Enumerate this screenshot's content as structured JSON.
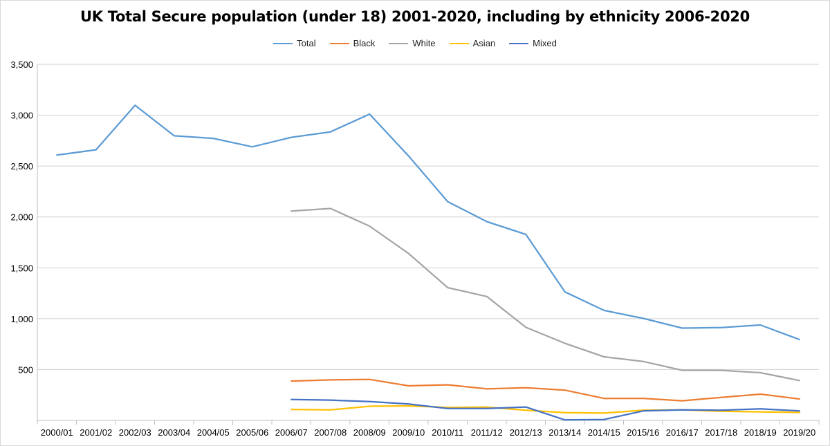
{
  "chart_data": {
    "type": "line",
    "title": "UK Total Secure population (under 18) 2001-2020, including by ethnicity 2006-2020",
    "xlabel": "",
    "ylabel": "",
    "ylim": [
      0,
      3500
    ],
    "yticks": [
      500,
      1000,
      1500,
      2000,
      2500,
      3000,
      3500
    ],
    "ytick_labels": [
      "500",
      "1,000",
      "1,500",
      "2,000",
      "2,500",
      "3,000",
      "3,500"
    ],
    "grid": true,
    "legend_position": "top",
    "categories": [
      "2000/01",
      "2001/02",
      "2002/03",
      "2003/04",
      "2004/05",
      "2005/06",
      "2006/07",
      "2007/08",
      "2008/09",
      "2009/10",
      "2010/11",
      "2011/12",
      "2012/13",
      "2013/14",
      "2014/15",
      "2015/16",
      "2016/17",
      "2017/18",
      "2018/19",
      "2019/20"
    ],
    "series": [
      {
        "name": "Total",
        "color": "#5b9bd5",
        "values": [
          2608,
          2660,
          3097,
          2797,
          2772,
          2689,
          2782,
          2836,
          3011,
          2598,
          2150,
          1954,
          1828,
          1263,
          1081,
          1003,
          907,
          912,
          938,
          795
        ]
      },
      {
        "name": "Black",
        "color": "#ed7d31",
        "values": [
          null,
          null,
          null,
          null,
          null,
          null,
          387,
          398,
          403,
          340,
          350,
          310,
          321,
          298,
          216,
          217,
          193,
          226,
          258,
          211
        ]
      },
      {
        "name": "White",
        "color": "#a5a5a5",
        "values": [
          null,
          null,
          null,
          null,
          null,
          null,
          2057,
          2083,
          1910,
          1640,
          1305,
          1218,
          915,
          758,
          625,
          580,
          493,
          492,
          469,
          392
        ]
      },
      {
        "name": "Asian",
        "color": "#ffc000",
        "values": [
          null,
          null,
          null,
          null,
          null,
          null,
          108,
          103,
          139,
          143,
          128,
          131,
          100,
          76,
          72,
          100,
          103,
          90,
          84,
          78
        ]
      },
      {
        "name": "Mixed",
        "color": "#4472c4",
        "values": [
          null,
          null,
          null,
          null,
          null,
          null,
          205,
          200,
          185,
          162,
          117,
          117,
          132,
          5,
          9,
          93,
          104,
          100,
          114,
          94
        ]
      }
    ]
  }
}
